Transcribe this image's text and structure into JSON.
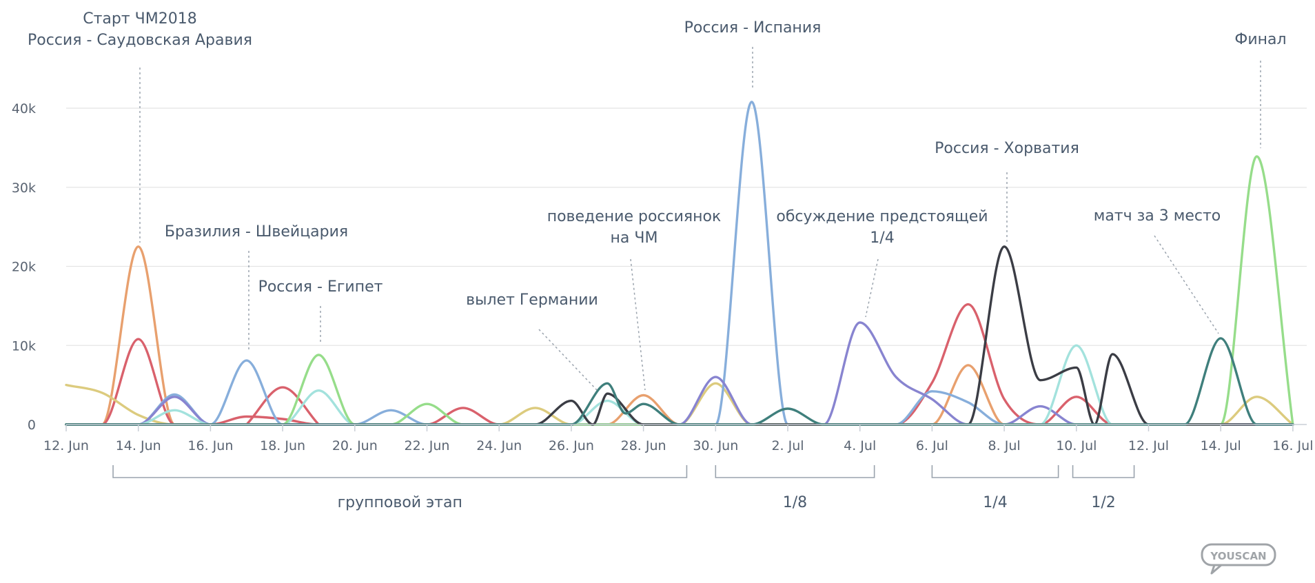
{
  "chart_data": {
    "type": "line",
    "title": "",
    "xlabel": "",
    "ylabel": "",
    "ylim": [
      0,
      45000
    ],
    "xlim": [
      "2018-06-12",
      "2018-07-16"
    ],
    "grid": true,
    "legend": "none",
    "y_ticks": [
      {
        "value": 0,
        "label": "0"
      },
      {
        "value": 10000,
        "label": "10k"
      },
      {
        "value": 20000,
        "label": "20k"
      },
      {
        "value": 30000,
        "label": "30k"
      },
      {
        "value": 40000,
        "label": "40k"
      }
    ],
    "x_ticks": [
      {
        "date": "2018-06-12",
        "label": "12. Jun"
      },
      {
        "date": "2018-06-14",
        "label": "14. Jun"
      },
      {
        "date": "2018-06-16",
        "label": "16. Jun"
      },
      {
        "date": "2018-06-18",
        "label": "18. Jun"
      },
      {
        "date": "2018-06-20",
        "label": "20. Jun"
      },
      {
        "date": "2018-06-22",
        "label": "22. Jun"
      },
      {
        "date": "2018-06-24",
        "label": "24. Jun"
      },
      {
        "date": "2018-06-26",
        "label": "26. Jun"
      },
      {
        "date": "2018-06-28",
        "label": "28. Jun"
      },
      {
        "date": "2018-06-30",
        "label": "30. Jun"
      },
      {
        "date": "2018-07-02",
        "label": "2. Jul"
      },
      {
        "date": "2018-07-04",
        "label": "4. Jul"
      },
      {
        "date": "2018-07-06",
        "label": "6. Jul"
      },
      {
        "date": "2018-07-08",
        "label": "8. Jul"
      },
      {
        "date": "2018-07-10",
        "label": "10. Jul"
      },
      {
        "date": "2018-07-12",
        "label": "12. Jul"
      },
      {
        "date": "2018-07-14",
        "label": "14. Jul"
      },
      {
        "date": "2018-07-16",
        "label": "16. Jul"
      }
    ],
    "series": [
      {
        "color": "#e8a06e",
        "points": [
          [
            "2018-06-12",
            0
          ],
          [
            "2018-06-13",
            0
          ],
          [
            "2018-06-14",
            22500
          ],
          [
            "2018-06-15",
            0
          ],
          [
            "2018-06-27",
            0
          ],
          [
            "2018-06-28",
            3700
          ],
          [
            "2018-06-29",
            0
          ],
          [
            "2018-07-06",
            0
          ],
          [
            "2018-07-07",
            7500
          ],
          [
            "2018-07-08",
            0
          ],
          [
            "2018-07-16",
            0
          ]
        ]
      },
      {
        "color": "#d9616c",
        "points": [
          [
            "2018-06-12",
            0
          ],
          [
            "2018-06-13",
            0
          ],
          [
            "2018-06-14",
            10800
          ],
          [
            "2018-06-15",
            0
          ],
          [
            "2018-06-16",
            0
          ],
          [
            "2018-06-17",
            1000
          ],
          [
            "2018-06-18",
            700
          ],
          [
            "2018-06-19",
            0
          ],
          [
            "2018-06-22",
            0
          ],
          [
            "2018-06-23",
            2100
          ],
          [
            "2018-06-24",
            0
          ],
          [
            "2018-07-05",
            0
          ],
          [
            "2018-07-06",
            5300
          ],
          [
            "2018-07-07",
            15200
          ],
          [
            "2018-07-08",
            3200
          ],
          [
            "2018-07-09",
            0
          ],
          [
            "2018-07-10",
            3500
          ],
          [
            "2018-07-11",
            0
          ],
          [
            "2018-07-16",
            0
          ]
        ]
      },
      {
        "color": "#d9616c",
        "points": [
          [
            "2018-06-17",
            0
          ],
          [
            "2018-06-18",
            4700
          ],
          [
            "2018-06-19",
            0
          ]
        ]
      },
      {
        "color": "#dccb7e",
        "points": [
          [
            "2018-06-12",
            5000
          ],
          [
            "2018-06-13",
            4000
          ],
          [
            "2018-06-14",
            1200
          ],
          [
            "2018-06-15",
            0
          ],
          [
            "2018-06-24",
            0
          ],
          [
            "2018-06-25",
            2100
          ],
          [
            "2018-06-26",
            0
          ],
          [
            "2018-06-29",
            0
          ],
          [
            "2018-06-30",
            5200
          ],
          [
            "2018-07-01",
            0
          ],
          [
            "2018-07-14",
            0
          ],
          [
            "2018-07-15",
            3500
          ],
          [
            "2018-07-16",
            0
          ]
        ]
      },
      {
        "color": "#87aedb",
        "points": [
          [
            "2018-06-12",
            0
          ],
          [
            "2018-06-14",
            0
          ],
          [
            "2018-06-15",
            3800
          ],
          [
            "2018-06-16",
            0
          ],
          [
            "2018-06-17",
            8100
          ],
          [
            "2018-06-18",
            0
          ],
          [
            "2018-06-20",
            0
          ],
          [
            "2018-06-21",
            1800
          ],
          [
            "2018-06-22",
            0
          ],
          [
            "2018-06-30",
            0
          ],
          [
            "2018-07-01",
            40800
          ],
          [
            "2018-07-02",
            0
          ],
          [
            "2018-07-05",
            0
          ],
          [
            "2018-07-06",
            4200
          ],
          [
            "2018-07-07",
            2800
          ],
          [
            "2018-07-08",
            0
          ],
          [
            "2018-07-16",
            0
          ]
        ]
      },
      {
        "color": "#8884d0",
        "points": [
          [
            "2018-06-12",
            0
          ],
          [
            "2018-06-14",
            0
          ],
          [
            "2018-06-15",
            3500
          ],
          [
            "2018-06-16",
            0
          ],
          [
            "2018-06-29",
            0
          ],
          [
            "2018-06-30",
            6000
          ],
          [
            "2018-07-01",
            0
          ],
          [
            "2018-07-03",
            0
          ],
          [
            "2018-07-04",
            12900
          ],
          [
            "2018-07-05",
            6000
          ],
          [
            "2018-07-06",
            3200
          ],
          [
            "2018-07-07",
            0
          ],
          [
            "2018-07-08",
            0
          ],
          [
            "2018-07-09",
            2300
          ],
          [
            "2018-07-10",
            0
          ],
          [
            "2018-07-16",
            0
          ]
        ]
      },
      {
        "color": "#a3e2dd",
        "points": [
          [
            "2018-06-12",
            0
          ],
          [
            "2018-06-14",
            0
          ],
          [
            "2018-06-15",
            1800
          ],
          [
            "2018-06-16",
            0
          ],
          [
            "2018-06-18",
            0
          ],
          [
            "2018-06-19",
            4300
          ],
          [
            "2018-06-20",
            0
          ],
          [
            "2018-06-26",
            0
          ],
          [
            "2018-06-27",
            3000
          ],
          [
            "2018-06-28",
            0
          ],
          [
            "2018-07-09",
            0
          ],
          [
            "2018-07-10",
            10000
          ],
          [
            "2018-07-11",
            0
          ],
          [
            "2018-07-16",
            0
          ]
        ]
      },
      {
        "color": "#96dd8a",
        "points": [
          [
            "2018-06-12",
            0
          ],
          [
            "2018-06-18",
            0
          ],
          [
            "2018-06-19",
            8800
          ],
          [
            "2018-06-20",
            0
          ],
          [
            "2018-06-21",
            0
          ],
          [
            "2018-06-22",
            2600
          ],
          [
            "2018-06-23",
            0
          ],
          [
            "2018-07-14",
            0
          ],
          [
            "2018-07-15",
            33900
          ],
          [
            "2018-07-16",
            0
          ]
        ]
      },
      {
        "color": "#3b3d45",
        "points": [
          [
            "2018-06-12",
            0
          ],
          [
            "2018-06-25",
            0
          ],
          [
            "2018-06-26",
            3000
          ],
          [
            "2018-06-26.6",
            0
          ],
          [
            "2018-06-27",
            3900
          ],
          [
            "2018-06-28",
            0
          ],
          [
            "2018-07-07",
            0
          ],
          [
            "2018-07-08",
            22500
          ],
          [
            "2018-07-09",
            5600
          ],
          [
            "2018-07-10",
            7200
          ],
          [
            "2018-07-10.5",
            0
          ],
          [
            "2018-07-11",
            8900
          ],
          [
            "2018-07-12",
            0
          ],
          [
            "2018-07-16",
            0
          ]
        ]
      },
      {
        "color": "#3f7f7c",
        "points": [
          [
            "2018-06-12",
            0
          ],
          [
            "2018-06-26",
            0
          ],
          [
            "2018-06-27",
            5200
          ],
          [
            "2018-06-27.5",
            1400
          ],
          [
            "2018-06-28",
            2600
          ],
          [
            "2018-06-29",
            0
          ],
          [
            "2018-07-01",
            0
          ],
          [
            "2018-07-02",
            2000
          ],
          [
            "2018-07-03",
            0
          ],
          [
            "2018-07-13",
            0
          ],
          [
            "2018-07-14",
            10900
          ],
          [
            "2018-07-15",
            0
          ],
          [
            "2018-07-16",
            0
          ]
        ]
      }
    ],
    "annotations": [
      {
        "lines": [
          "Старт ЧМ2018",
          "Россия - Саудовская Аравия"
        ],
        "date": "2018-06-14",
        "value": 22500
      },
      {
        "lines": [
          "Бразилия - Швейцария"
        ],
        "date": "2018-06-17",
        "value": 8100
      },
      {
        "lines": [
          "Россия - Египет"
        ],
        "date": "2018-06-19",
        "value": 8800
      },
      {
        "lines": [
          "вылет Германии"
        ],
        "date": "2018-06-27",
        "value": 5200
      },
      {
        "lines": [
          "поведение россиянок",
          "на ЧМ"
        ],
        "date": "2018-06-28",
        "value": 3700
      },
      {
        "lines": [
          "Россия - Испания"
        ],
        "date": "2018-07-01",
        "value": 40800
      },
      {
        "lines": [
          "обсуждение предстоящей",
          "1/4"
        ],
        "date": "2018-07-04",
        "value": 12900
      },
      {
        "lines": [
          "Россия - Хорватия"
        ],
        "date": "2018-07-08",
        "value": 22500
      },
      {
        "lines": [
          "матч за 3 место"
        ],
        "date": "2018-07-14",
        "value": 10900
      },
      {
        "lines": [
          "Финал"
        ],
        "date": "2018-07-15",
        "value": 33900
      }
    ],
    "stage_brackets": [
      {
        "label": "групповой этап",
        "start": "2018-06-13.3",
        "end": "2018-06-29.2"
      },
      {
        "label": "1/8",
        "start": "2018-06-30",
        "end": "2018-07-04.4"
      },
      {
        "label": "1/4",
        "start": "2018-07-06",
        "end": "2018-07-09.5"
      },
      {
        "label": "1/2",
        "start": "2018-07-09.9",
        "end": "2018-07-11.6"
      }
    ]
  },
  "logo": {
    "text": "YOUSCAN",
    "color": "#a0a4a8"
  }
}
